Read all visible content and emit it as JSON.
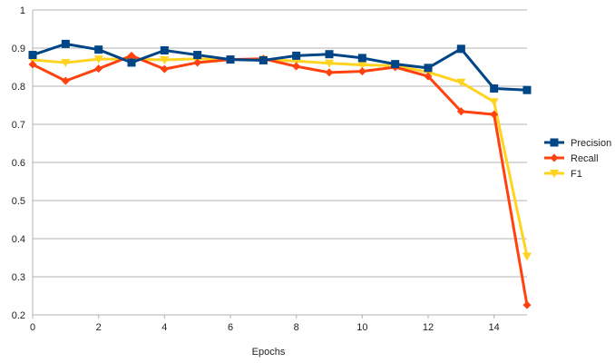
{
  "chart_data": {
    "type": "line",
    "title": "",
    "xlabel": "Epochs",
    "ylabel": "",
    "xlim": [
      0,
      15
    ],
    "ylim": [
      0.2,
      1.0
    ],
    "x_ticks": [
      0,
      2,
      4,
      6,
      8,
      10,
      12,
      14
    ],
    "y_ticks": [
      0.2,
      0.3,
      0.4,
      0.5,
      0.6,
      0.7,
      0.8,
      0.9,
      1.0
    ],
    "x_tick_labels": [
      "0",
      "2",
      "4",
      "6",
      "8",
      "10",
      "12",
      "14"
    ],
    "y_tick_labels": [
      "0.2",
      "0.3",
      "0.4",
      "0.5",
      "0.6",
      "0.7",
      "0.8",
      "0.9",
      "1"
    ],
    "grid": "horizontal",
    "legend_position": "right",
    "x": [
      0,
      1,
      2,
      3,
      4,
      5,
      6,
      7,
      8,
      9,
      10,
      11,
      12,
      13,
      14,
      15
    ],
    "series": [
      {
        "name": "Precision",
        "color": "#004586",
        "marker": "square",
        "values": [
          0.882,
          0.911,
          0.896,
          0.862,
          0.894,
          0.882,
          0.87,
          0.868,
          0.88,
          0.884,
          0.874,
          0.858,
          0.848,
          0.898,
          0.794,
          0.79
        ]
      },
      {
        "name": "Recall",
        "color": "#ff420e",
        "marker": "diamond",
        "values": [
          0.857,
          0.814,
          0.846,
          0.88,
          0.845,
          0.862,
          0.87,
          0.872,
          0.852,
          0.836,
          0.839,
          0.85,
          0.826,
          0.734,
          0.726,
          0.226
        ]
      },
      {
        "name": "F1",
        "color": "#ffd320",
        "marker": "triangle-down",
        "values": [
          0.869,
          0.862,
          0.871,
          0.871,
          0.869,
          0.872,
          0.87,
          0.87,
          0.866,
          0.86,
          0.856,
          0.854,
          0.837,
          0.81,
          0.759,
          0.354
        ]
      }
    ]
  }
}
